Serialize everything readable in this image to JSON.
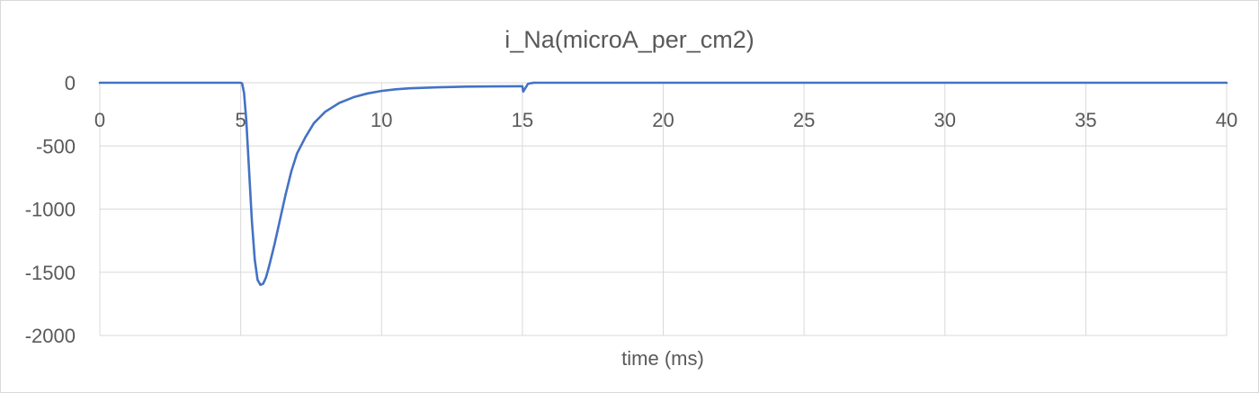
{
  "chart_data": {
    "type": "line",
    "title": "i_Na(microA_per_cm2)",
    "xlabel": "time (ms)",
    "ylabel": "",
    "xlim": [
      0,
      40
    ],
    "ylim": [
      -2000,
      0
    ],
    "x_ticks": [
      "0",
      "5",
      "10",
      "15",
      "20",
      "25",
      "30",
      "35",
      "40"
    ],
    "y_ticks": [
      "0",
      "-500",
      "-1000",
      "-1500",
      "-2000"
    ],
    "grid": true,
    "legend": "none",
    "series": [
      {
        "color": "#4472c4",
        "points": [
          [
            0,
            0
          ],
          [
            5.0,
            0
          ],
          [
            5.05,
            -5
          ],
          [
            5.12,
            -80
          ],
          [
            5.2,
            -300
          ],
          [
            5.3,
            -700
          ],
          [
            5.4,
            -1100
          ],
          [
            5.5,
            -1400
          ],
          [
            5.6,
            -1560
          ],
          [
            5.7,
            -1600
          ],
          [
            5.8,
            -1590
          ],
          [
            5.9,
            -1540
          ],
          [
            6.0,
            -1460
          ],
          [
            6.2,
            -1280
          ],
          [
            6.4,
            -1080
          ],
          [
            6.6,
            -880
          ],
          [
            6.8,
            -700
          ],
          [
            7.0,
            -560
          ],
          [
            7.3,
            -430
          ],
          [
            7.6,
            -320
          ],
          [
            8.0,
            -230
          ],
          [
            8.5,
            -160
          ],
          [
            9.0,
            -115
          ],
          [
            9.5,
            -85
          ],
          [
            10.0,
            -65
          ],
          [
            10.5,
            -52
          ],
          [
            11.0,
            -44
          ],
          [
            12.0,
            -36
          ],
          [
            13.0,
            -31
          ],
          [
            14.0,
            -29
          ],
          [
            14.9,
            -28
          ],
          [
            15.0,
            -28
          ],
          [
            15.03,
            -70
          ],
          [
            15.1,
            -45
          ],
          [
            15.2,
            -8
          ],
          [
            15.4,
            0
          ],
          [
            20,
            0
          ],
          [
            25,
            0
          ],
          [
            30,
            0
          ],
          [
            35,
            0
          ],
          [
            40,
            0
          ]
        ]
      }
    ]
  }
}
